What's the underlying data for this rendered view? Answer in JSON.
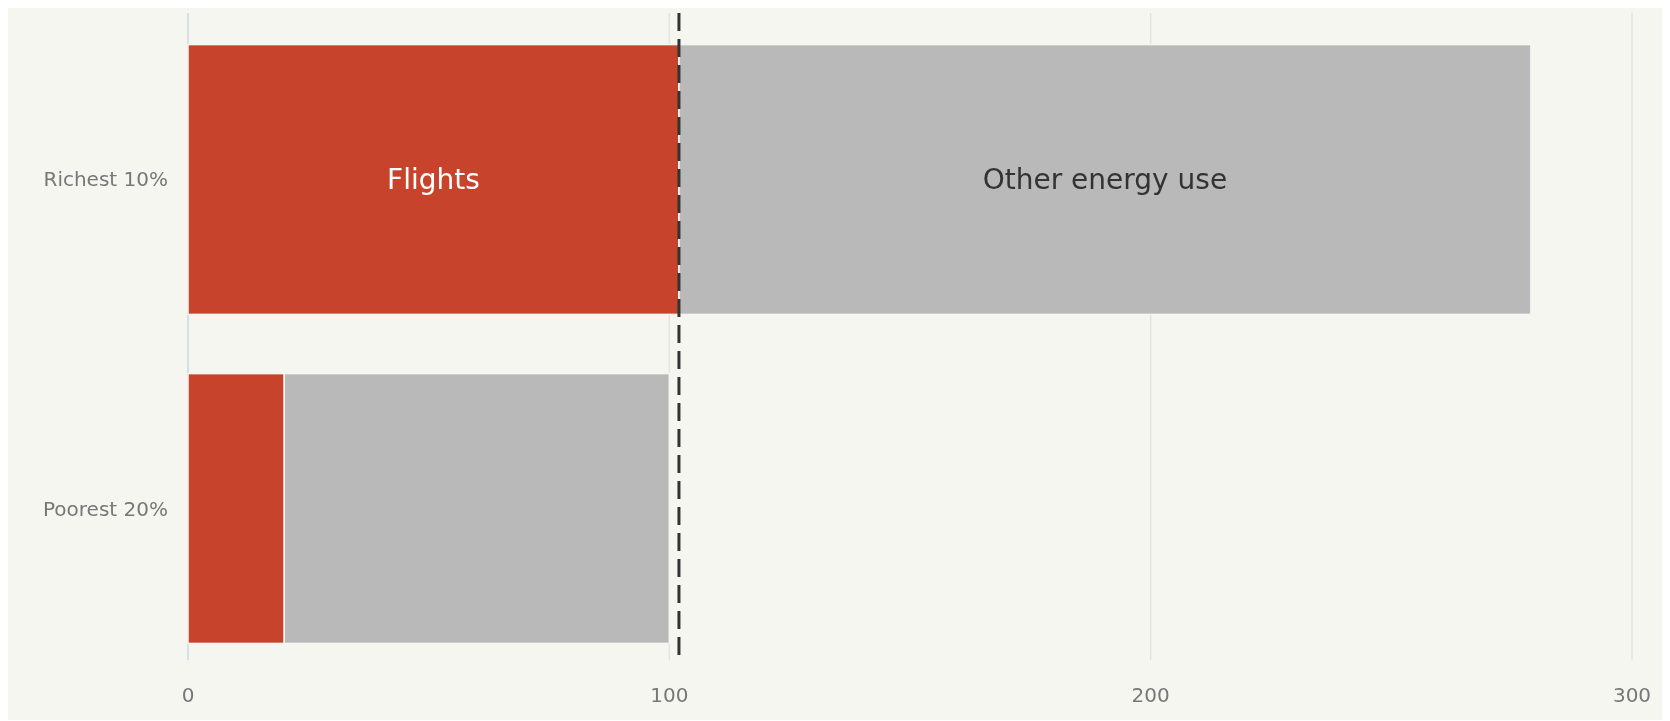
{
  "chart_data": {
    "type": "bar",
    "orientation": "horizontal",
    "stacked": true,
    "categories": [
      "Richest 10%",
      "Poorest 20%"
    ],
    "series": [
      {
        "name": "Flights",
        "color": "#c8432b",
        "values": [
          102,
          20
        ]
      },
      {
        "name": "Other energy use",
        "color": "#b9b9b9",
        "values": [
          177,
          80
        ]
      }
    ],
    "xlim": [
      0,
      300
    ],
    "xticks": [
      0,
      100,
      200,
      300
    ],
    "grid": "x",
    "ref_lines": [
      {
        "axis": "x",
        "value": 102,
        "line_style": "dashed",
        "color": "#333333"
      }
    ]
  }
}
